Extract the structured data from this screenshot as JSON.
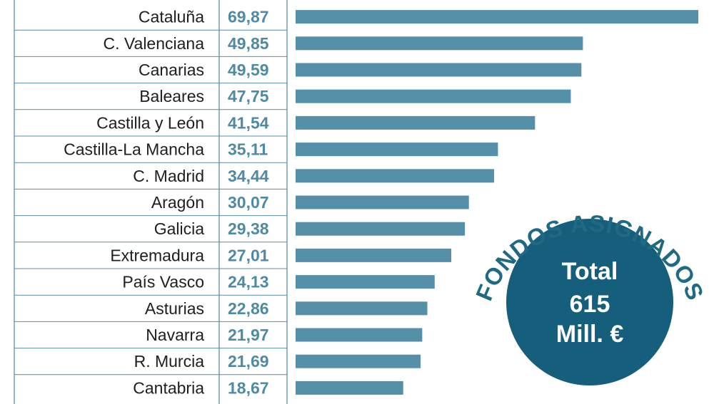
{
  "colors": {
    "bar": "#5690a8",
    "value_text": "#4f8aa4",
    "label_text": "#1e1e1e",
    "rule": "#5a8ea6",
    "circle": "#155f7c",
    "arc_text": "#1f6983"
  },
  "chart_data": {
    "type": "bar",
    "orientation": "horizontal",
    "categories": [
      "Cataluña",
      "C. Valenciana",
      "Canarias",
      "Baleares",
      "Castilla y León",
      "Castilla-La Mancha",
      "C. Madrid",
      "Aragón",
      "Galicia",
      "Extremadura",
      "País Vasco",
      "Asturias",
      "Navarra",
      "R. Murcia",
      "Cantabria"
    ],
    "values": [
      69.87,
      49.85,
      49.59,
      47.75,
      41.54,
      35.11,
      34.44,
      30.07,
      29.38,
      27.01,
      24.13,
      22.86,
      21.97,
      21.69,
      18.67
    ],
    "value_labels": [
      "69,87",
      "49,85",
      "49,59",
      "47,75",
      "41,54",
      "35,11",
      "34,44",
      "30,07",
      "29,38",
      "27,01",
      "24,13",
      "22,86",
      "21,97",
      "21,69",
      "18,67"
    ],
    "title": "",
    "xlabel": "",
    "ylabel": ""
  },
  "badge": {
    "arc_label": "FONDOS ASIGNADOS",
    "line1": "Total",
    "line2": "615",
    "line3": "Mill. €"
  }
}
